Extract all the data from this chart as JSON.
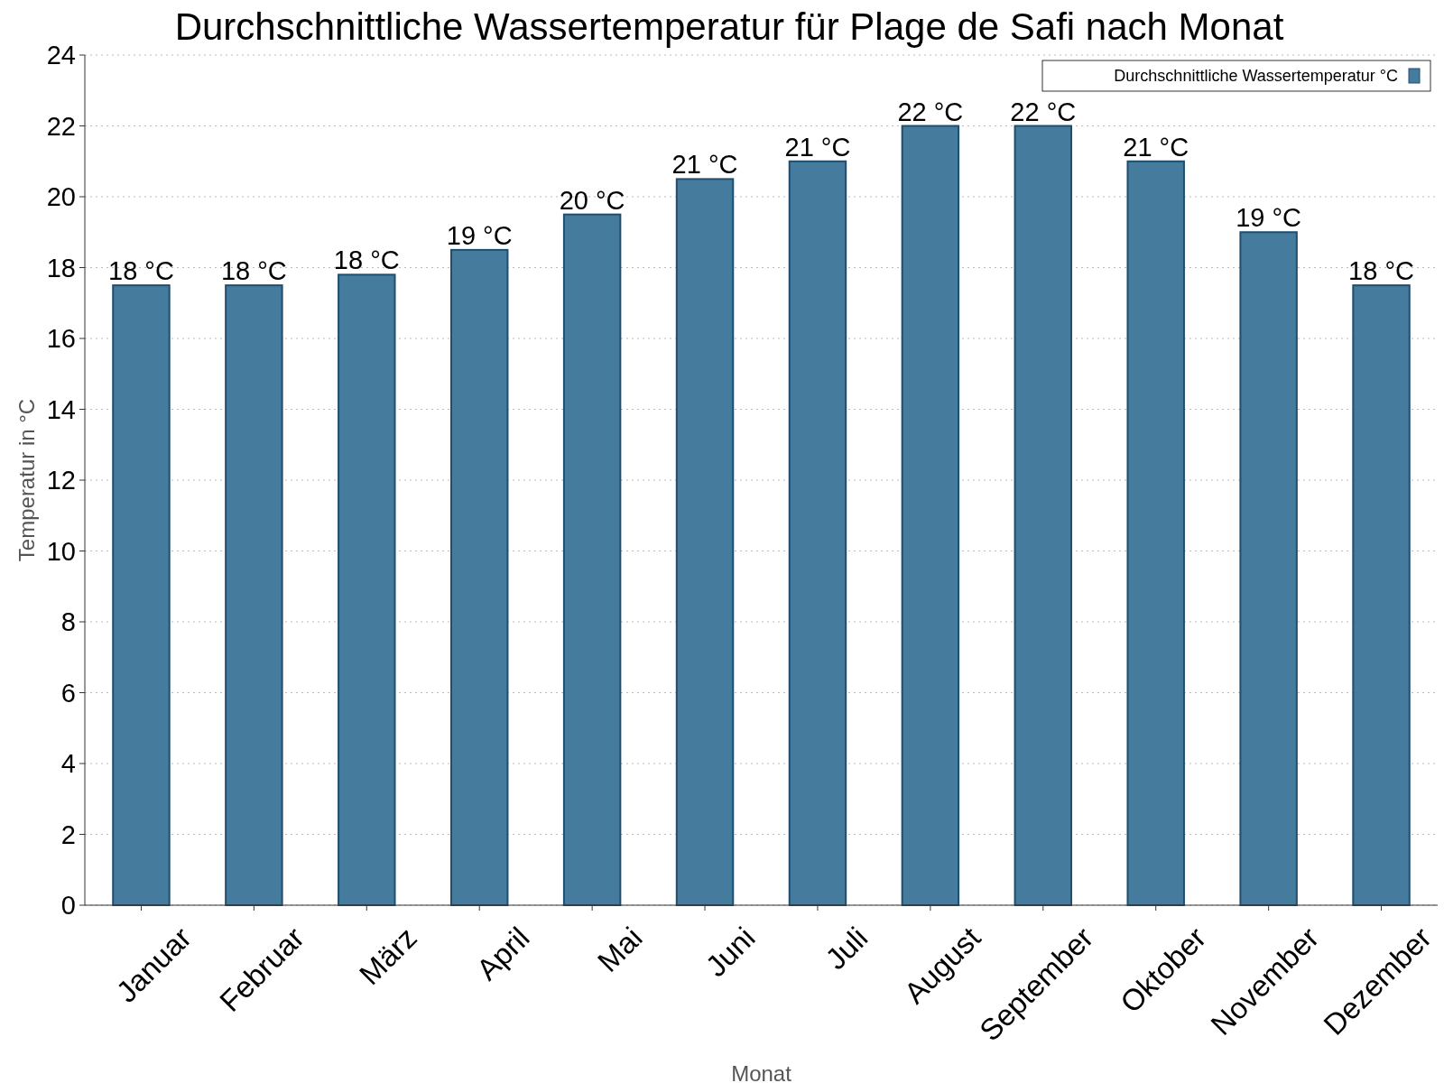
{
  "chart_data": {
    "type": "bar",
    "title": "Durchschnittliche Wassertemperatur für Plage de Safi nach Monat",
    "xlabel": "Monat",
    "ylabel": "Temperatur in °C",
    "categories": [
      "Januar",
      "Februar",
      "März",
      "April",
      "Mai",
      "Juni",
      "Juli",
      "August",
      "September",
      "Oktober",
      "November",
      "Dezember"
    ],
    "series": [
      {
        "name": "Durchschnittliche Wassertemperatur °C",
        "color": "#457b9d",
        "values": [
          17.5,
          17.5,
          17.8,
          18.5,
          19.5,
          20.5,
          21.0,
          22.0,
          22.0,
          21.0,
          19.0,
          17.5
        ],
        "value_labels": [
          "18 °C",
          "18 °C",
          "18 °C",
          "19 °C",
          "20 °C",
          "21 °C",
          "21 °C",
          "22 °C",
          "22 °C",
          "21 °C",
          "19 °C",
          "18 °C"
        ]
      }
    ],
    "ylim": [
      0,
      24
    ],
    "yticks": [
      0,
      2,
      4,
      6,
      8,
      10,
      12,
      14,
      16,
      18,
      20,
      22,
      24
    ],
    "grid": "y",
    "legend": "top right"
  }
}
